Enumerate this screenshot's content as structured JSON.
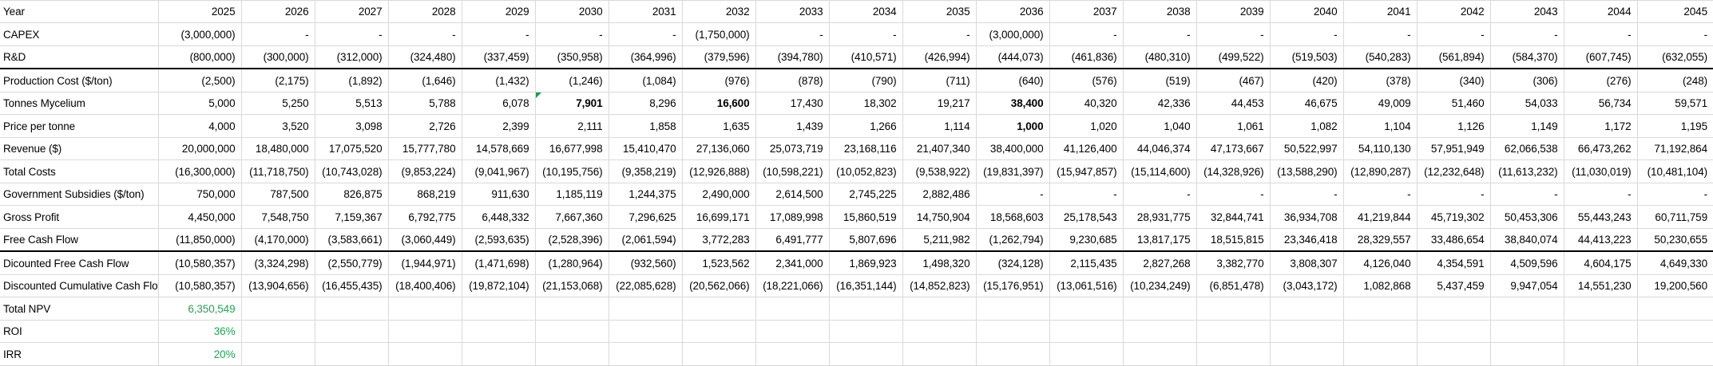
{
  "app": {
    "type": "spreadsheet-financial-model"
  },
  "colors": {
    "green_text": "#23a455",
    "marker_green": "#1f9d46",
    "gridline": "#d9d9d9",
    "thick_border": "#000000",
    "text": "#000000",
    "background": "#ffffff"
  },
  "table": {
    "label_header": "Year",
    "years": [
      "2025",
      "2026",
      "2027",
      "2028",
      "2029",
      "2030",
      "2031",
      "2032",
      "2033",
      "2034",
      "2035",
      "2036",
      "2037",
      "2038",
      "2039",
      "2040",
      "2041",
      "2042",
      "2043",
      "2044",
      "2045"
    ],
    "rows": [
      {
        "id": "capex",
        "label": "CAPEX",
        "values": [
          "(3,000,000)",
          "-",
          "-",
          "-",
          "-",
          "-",
          "-",
          "(1,750,000)",
          "-",
          "-",
          "-",
          "(3,000,000)",
          "-",
          "-",
          "-",
          "-",
          "-",
          "-",
          "-",
          "-",
          "-"
        ],
        "bold": [],
        "marker": [],
        "thick_bottom": false,
        "value_color": null
      },
      {
        "id": "rnd",
        "label": "R&D",
        "values": [
          "(800,000)",
          "(300,000)",
          "(312,000)",
          "(324,480)",
          "(337,459)",
          "(350,958)",
          "(364,996)",
          "(379,596)",
          "(394,780)",
          "(410,571)",
          "(426,994)",
          "(444,073)",
          "(461,836)",
          "(480,310)",
          "(499,522)",
          "(519,503)",
          "(540,283)",
          "(561,894)",
          "(584,370)",
          "(607,745)",
          "(632,055)"
        ],
        "bold": [],
        "marker": [],
        "thick_bottom": true,
        "value_color": null
      },
      {
        "id": "production-cost",
        "label": "Production Cost ($/ton)",
        "values": [
          "(2,500)",
          "(2,175)",
          "(1,892)",
          "(1,646)",
          "(1,432)",
          "(1,246)",
          "(1,084)",
          "(976)",
          "(878)",
          "(790)",
          "(711)",
          "(640)",
          "(576)",
          "(519)",
          "(467)",
          "(420)",
          "(378)",
          "(340)",
          "(306)",
          "(276)",
          "(248)"
        ],
        "bold": [],
        "marker": [],
        "thick_bottom": false,
        "value_color": null
      },
      {
        "id": "tonnes-mycelium",
        "label": "Tonnes Mycelium",
        "values": [
          "5,000",
          "5,250",
          "5,513",
          "5,788",
          "6,078",
          "7,901",
          "8,296",
          "16,600",
          "17,430",
          "18,302",
          "19,217",
          "38,400",
          "40,320",
          "42,336",
          "44,453",
          "46,675",
          "49,009",
          "51,460",
          "54,033",
          "56,734",
          "59,571"
        ],
        "bold": [
          5,
          7,
          11
        ],
        "marker": [
          5
        ],
        "thick_bottom": false,
        "value_color": null
      },
      {
        "id": "price-per-tonne",
        "label": "Price per tonne",
        "values": [
          "4,000",
          "3,520",
          "3,098",
          "2,726",
          "2,399",
          "2,111",
          "1,858",
          "1,635",
          "1,439",
          "1,266",
          "1,114",
          "1,000",
          "1,020",
          "1,040",
          "1,061",
          "1,082",
          "1,104",
          "1,126",
          "1,149",
          "1,172",
          "1,195"
        ],
        "bold": [
          11
        ],
        "marker": [],
        "thick_bottom": false,
        "value_color": null
      },
      {
        "id": "revenue",
        "label": "Revenue ($)",
        "values": [
          "20,000,000",
          "18,480,000",
          "17,075,520",
          "15,777,780",
          "14,578,669",
          "16,677,998",
          "15,410,470",
          "27,136,060",
          "25,073,719",
          "23,168,116",
          "21,407,340",
          "38,400,000",
          "41,126,400",
          "44,046,374",
          "47,173,667",
          "50,522,997",
          "54,110,130",
          "57,951,949",
          "62,066,538",
          "66,473,262",
          "71,192,864"
        ],
        "bold": [],
        "marker": [],
        "thick_bottom": false,
        "value_color": null
      },
      {
        "id": "total-costs",
        "label": "Total Costs",
        "values": [
          "(16,300,000)",
          "(11,718,750)",
          "(10,743,028)",
          "(9,853,224)",
          "(9,041,967)",
          "(10,195,756)",
          "(9,358,219)",
          "(12,926,888)",
          "(10,598,221)",
          "(10,052,823)",
          "(9,538,922)",
          "(19,831,397)",
          "(15,947,857)",
          "(15,114,600)",
          "(14,328,926)",
          "(13,588,290)",
          "(12,890,287)",
          "(12,232,648)",
          "(11,613,232)",
          "(11,030,019)",
          "(10,481,104)"
        ],
        "bold": [],
        "marker": [],
        "thick_bottom": false,
        "value_color": null
      },
      {
        "id": "government-subsidies",
        "label": "Government Subsidies ($/ton)",
        "values": [
          "750,000",
          "787,500",
          "826,875",
          "868,219",
          "911,630",
          "1,185,119",
          "1,244,375",
          "2,490,000",
          "2,614,500",
          "2,745,225",
          "2,882,486",
          "-",
          "-",
          "-",
          "-",
          "-",
          "-",
          "-",
          "-",
          "-",
          "-"
        ],
        "bold": [],
        "marker": [],
        "thick_bottom": false,
        "value_color": null
      },
      {
        "id": "gross-profit",
        "label": "Gross Profit",
        "values": [
          "4,450,000",
          "7,548,750",
          "7,159,367",
          "6,792,775",
          "6,448,332",
          "7,667,360",
          "7,296,625",
          "16,699,171",
          "17,089,998",
          "15,860,519",
          "14,750,904",
          "18,568,603",
          "25,178,543",
          "28,931,775",
          "32,844,741",
          "36,934,708",
          "41,219,844",
          "45,719,302",
          "50,453,306",
          "55,443,243",
          "60,711,759"
        ],
        "bold": [],
        "marker": [],
        "thick_bottom": false,
        "value_color": null
      },
      {
        "id": "free-cash-flow",
        "label": "Free Cash Flow",
        "values": [
          "(11,850,000)",
          "(4,170,000)",
          "(3,583,661)",
          "(3,060,449)",
          "(2,593,635)",
          "(2,528,396)",
          "(2,061,594)",
          "3,772,283",
          "6,491,777",
          "5,807,696",
          "5,211,982",
          "(1,262,794)",
          "9,230,685",
          "13,817,175",
          "18,515,815",
          "23,346,418",
          "28,329,557",
          "33,486,654",
          "38,840,074",
          "44,413,223",
          "50,230,655"
        ],
        "bold": [],
        "marker": [],
        "thick_bottom": true,
        "value_color": null
      },
      {
        "id": "discounted-free-cash-flow",
        "label": "Dicounted Free Cash Flow",
        "values": [
          "(10,580,357)",
          "(3,324,298)",
          "(2,550,779)",
          "(1,944,971)",
          "(1,471,698)",
          "(1,280,964)",
          "(932,560)",
          "1,523,562",
          "2,341,000",
          "1,869,923",
          "1,498,320",
          "(324,128)",
          "2,115,435",
          "2,827,268",
          "3,382,770",
          "3,808,307",
          "4,126,040",
          "4,354,591",
          "4,509,596",
          "4,604,175",
          "4,649,330"
        ],
        "bold": [],
        "marker": [],
        "thick_bottom": false,
        "value_color": null
      },
      {
        "id": "discounted-cumulative-cash-flow",
        "label": "Discounted Cumulative Cash Flow",
        "values": [
          "(10,580,357)",
          "(13,904,656)",
          "(16,455,435)",
          "(18,400,406)",
          "(19,872,104)",
          "(21,153,068)",
          "(22,085,628)",
          "(20,562,066)",
          "(18,221,066)",
          "(16,351,144)",
          "(14,852,823)",
          "(15,176,951)",
          "(13,061,516)",
          "(10,234,249)",
          "(6,851,478)",
          "(3,043,172)",
          "1,082,868",
          "5,437,459",
          "9,947,054",
          "14,551,230",
          "19,200,560"
        ],
        "bold": [],
        "marker": [],
        "thick_bottom": false,
        "value_color": null
      },
      {
        "id": "total-npv",
        "label": "Total NPV",
        "values": [
          "6,350,549",
          "",
          "",
          "",
          "",
          "",
          "",
          "",
          "",
          "",
          "",
          "",
          "",
          "",
          "",
          "",
          "",
          "",
          "",
          "",
          ""
        ],
        "bold": [],
        "marker": [],
        "thick_bottom": false,
        "value_color": "green"
      },
      {
        "id": "roi",
        "label": "ROI",
        "values": [
          "36%",
          "",
          "",
          "",
          "",
          "",
          "",
          "",
          "",
          "",
          "",
          "",
          "",
          "",
          "",
          "",
          "",
          "",
          "",
          "",
          ""
        ],
        "bold": [],
        "marker": [],
        "thick_bottom": false,
        "value_color": "green"
      },
      {
        "id": "irr",
        "label": "IRR",
        "values": [
          "20%",
          "",
          "",
          "",
          "",
          "",
          "",
          "",
          "",
          "",
          "",
          "",
          "",
          "",
          "",
          "",
          "",
          "",
          "",
          "",
          ""
        ],
        "bold": [],
        "marker": [],
        "thick_bottom": false,
        "value_color": "green"
      }
    ]
  }
}
